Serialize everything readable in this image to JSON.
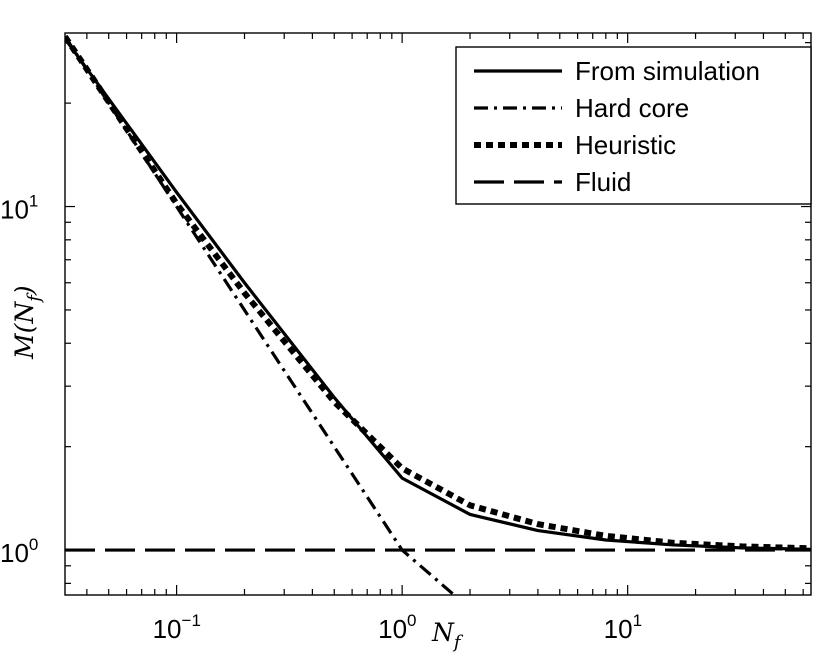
{
  "chart_data": {
    "type": "line",
    "xscale": "log",
    "yscale": "log",
    "xlim": [
      0.032,
      65
    ],
    "ylim": [
      0.74,
      32
    ],
    "grid": false,
    "legend_position": "top-right",
    "xlabel": {
      "main": "N",
      "sub": "f"
    },
    "ylabel": {
      "main": "M(N",
      "sub": "f",
      "close": ")"
    },
    "x_ticks": [
      {
        "value": 0.1,
        "base": "10",
        "exp": "−1"
      },
      {
        "value": 1,
        "base": "10",
        "exp": "0"
      },
      {
        "value": 10,
        "base": "10",
        "exp": "1"
      }
    ],
    "y_ticks": [
      {
        "value": 1,
        "base": "10",
        "exp": "0"
      },
      {
        "value": 10,
        "base": "10",
        "exp": "1"
      }
    ],
    "series": [
      {
        "name": "From simulation",
        "style": "solid",
        "color": "#000000",
        "x": [
          0.032,
          0.1,
          0.2,
          0.5,
          1,
          2,
          4,
          8,
          16,
          32,
          65
        ],
        "y": [
          30.8,
          11.0,
          6.0,
          2.78,
          1.62,
          1.27,
          1.14,
          1.07,
          1.035,
          1.015,
          1.005
        ]
      },
      {
        "name": "Hard core",
        "style": "dashdot",
        "color": "#000000",
        "x": [
          0.032,
          0.1,
          0.3,
          1,
          1.7
        ],
        "y": [
          31.25,
          10.0,
          3.33,
          1.0,
          0.74
        ]
      },
      {
        "name": "Heuristic",
        "style": "dotted",
        "color": "#000000",
        "x": [
          0.032,
          0.1,
          0.2,
          0.5,
          1,
          2,
          4,
          8,
          16,
          32,
          65
        ],
        "y": [
          31.25,
          10.2,
          5.6,
          2.7,
          1.73,
          1.35,
          1.19,
          1.1,
          1.05,
          1.025,
          1.012
        ]
      },
      {
        "name": "Fluid",
        "style": "dashed",
        "color": "#000000",
        "x": [
          0.032,
          65
        ],
        "y": [
          1.0,
          1.0
        ]
      }
    ]
  }
}
